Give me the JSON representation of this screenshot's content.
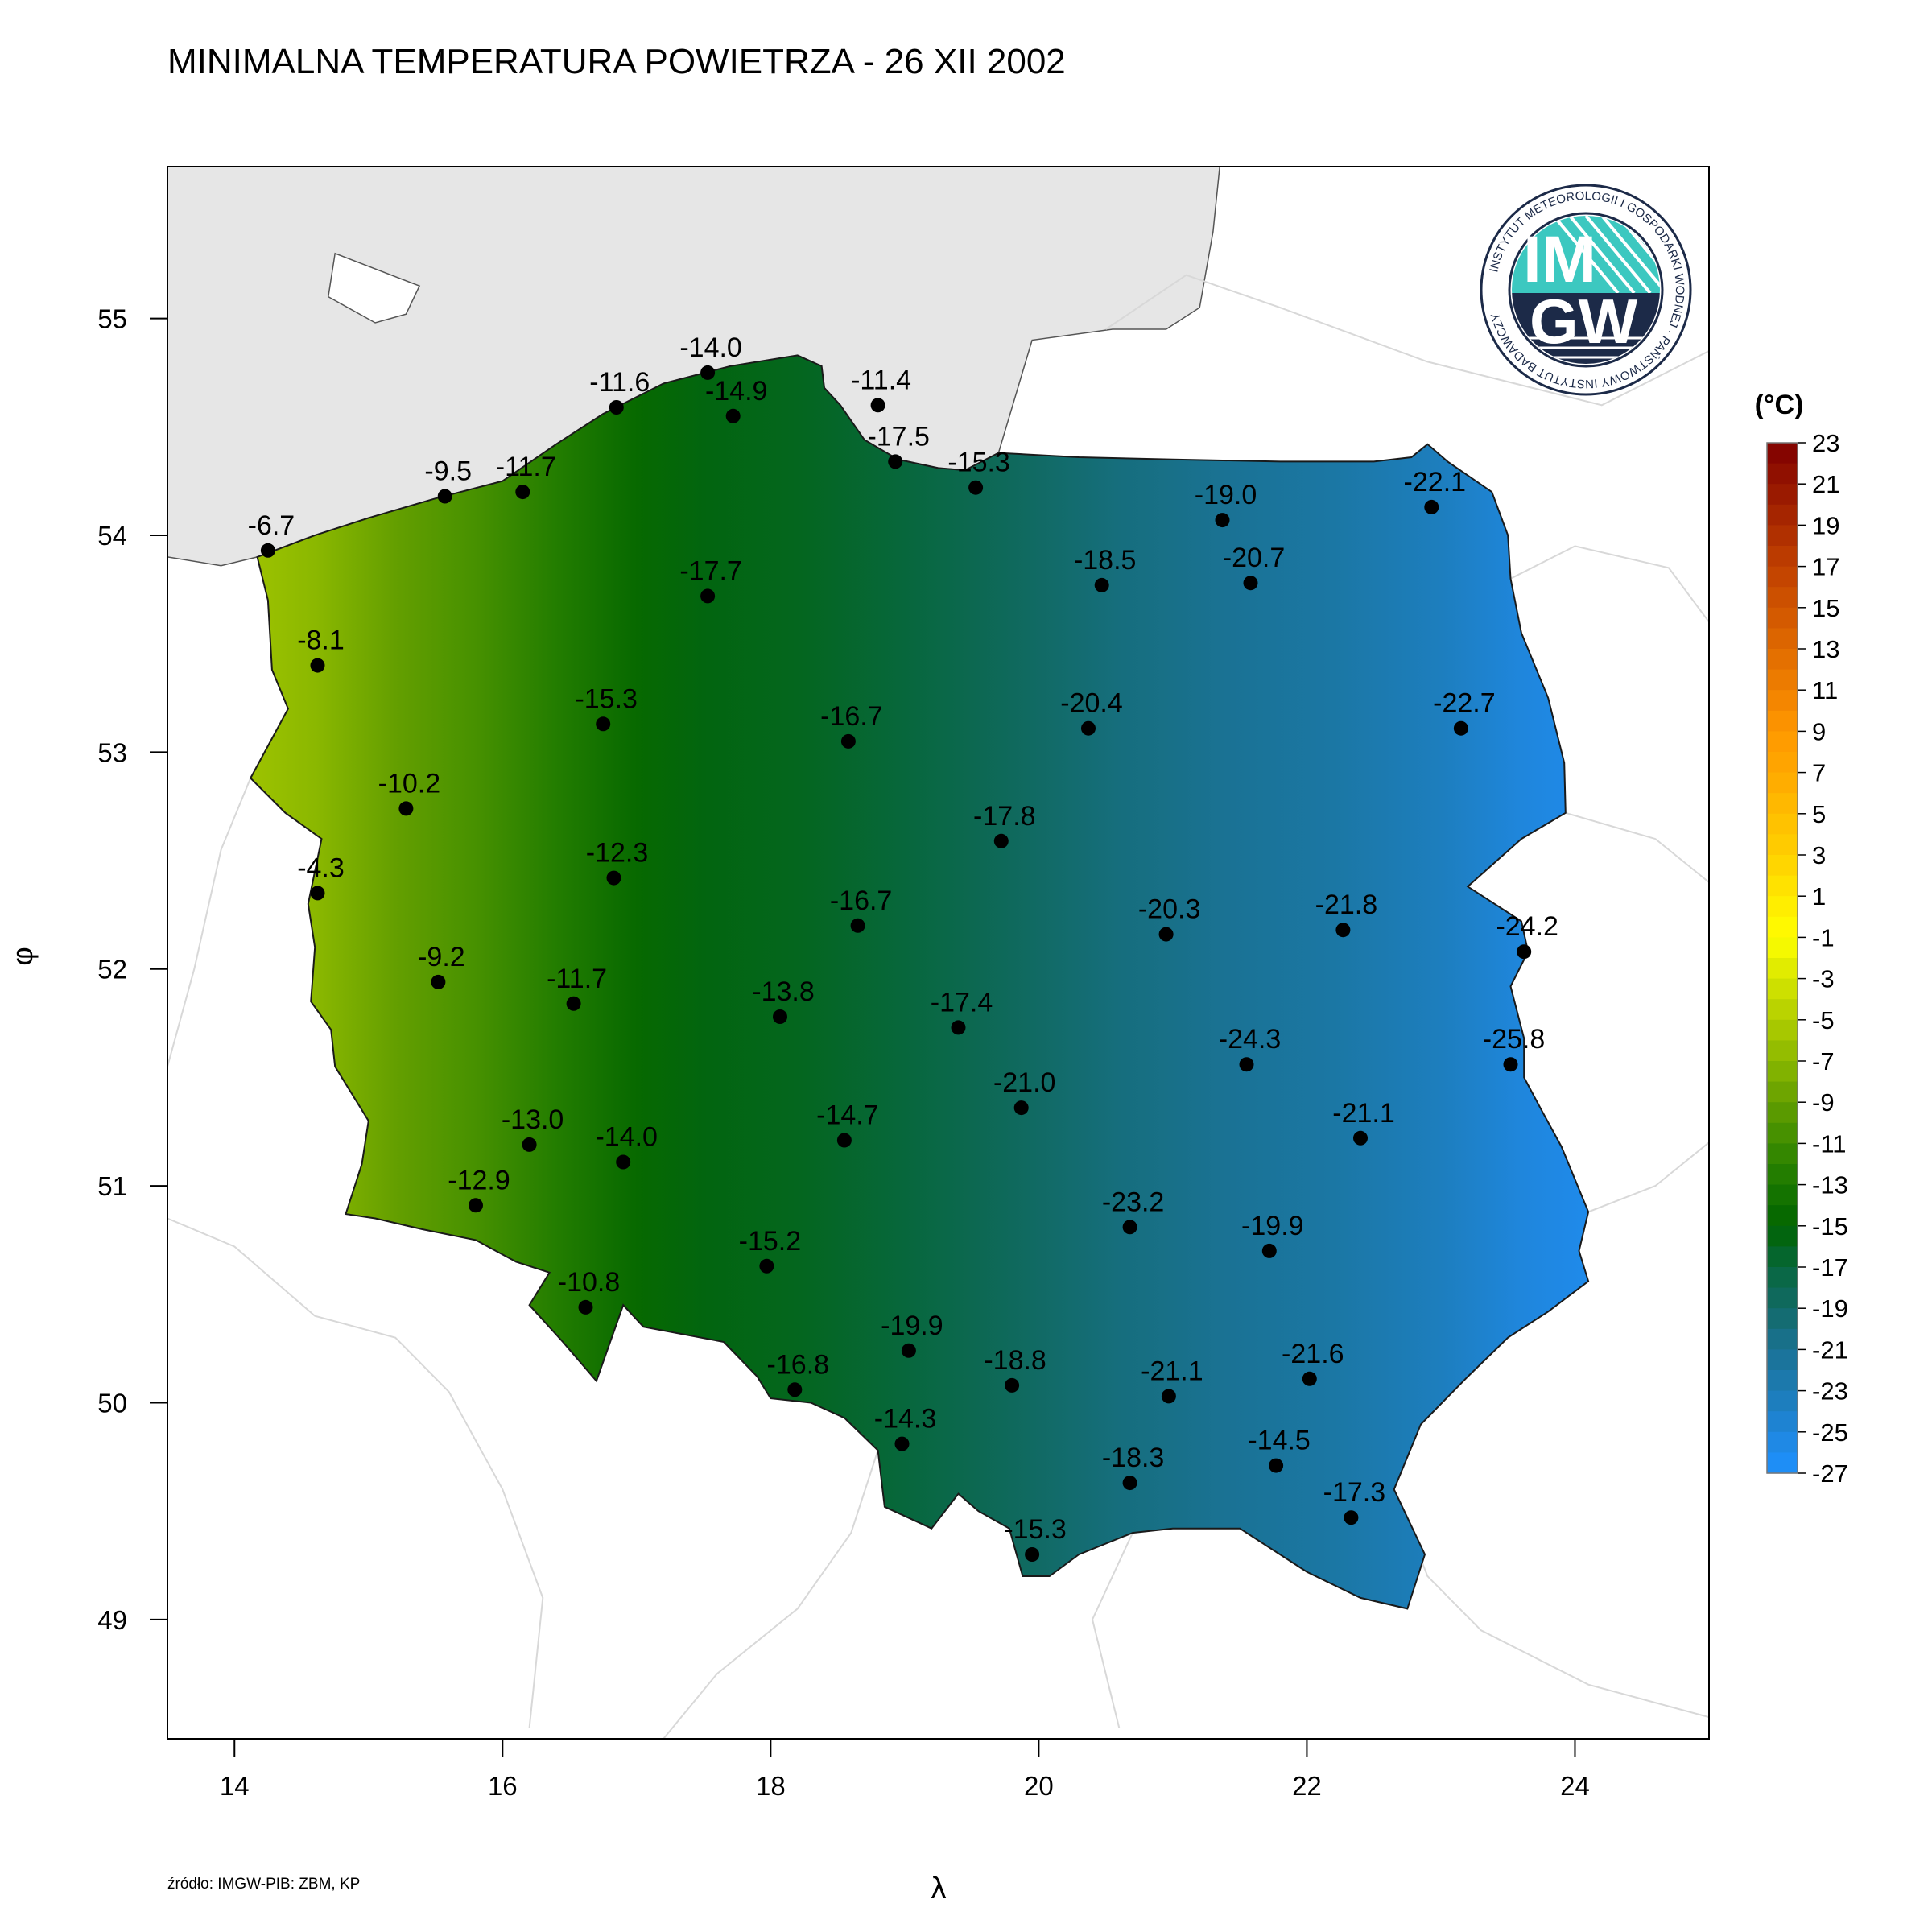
{
  "title": "MINIMALNA TEMPERATURA POWIETRZA - 26 XII 2002",
  "source": "źródło: IMGW-PIB: ZBM, KP",
  "axes": {
    "x_label": "λ",
    "y_label": "φ",
    "x_ticks": [
      14,
      16,
      18,
      20,
      22,
      24
    ],
    "y_ticks": [
      49,
      50,
      51,
      52,
      53,
      54,
      55
    ],
    "x_range": [
      13.5,
      25.0
    ],
    "y_range": [
      48.45,
      55.7
    ]
  },
  "logo": {
    "name": "IMGW",
    "line1": "IM",
    "line2": "GW",
    "ring_text": "INSTYTUT METEOROLOGII I GOSPODARKI WODNEJ · PAŃSTWOWY INSTYTUT BADAWCZY"
  },
  "legend": {
    "title": "(°C)",
    "labels": [
      "23",
      "21",
      "19",
      "17",
      "15",
      "13",
      "11",
      "9",
      "7",
      "5",
      "3",
      "1",
      "-1",
      "-3",
      "-5",
      "-7",
      "-9",
      "-11",
      "-13",
      "-15",
      "-17",
      "-19",
      "-21",
      "-23",
      "-25",
      "-27"
    ],
    "range": [
      -27,
      23
    ]
  },
  "colors": {
    "sea": "#e6e6e6",
    "frame": "#000000",
    "marker": "#000000",
    "warm_top": "#7f0000",
    "cold_bottom": "#1e90ff",
    "logo_teal": "#3cc8c0",
    "logo_navy": "#1c2a48"
  },
  "stations": [
    {
      "lon": 14.25,
      "lat": 53.93,
      "label": "-6.7"
    },
    {
      "lon": 15.57,
      "lat": 54.18,
      "label": "-9.5"
    },
    {
      "lon": 16.15,
      "lat": 54.2,
      "label": "-11.7"
    },
    {
      "lon": 16.85,
      "lat": 54.59,
      "label": "-11.6"
    },
    {
      "lon": 17.53,
      "lat": 54.75,
      "label": "-14.0"
    },
    {
      "lon": 17.72,
      "lat": 54.55,
      "label": "-14.9"
    },
    {
      "lon": 18.8,
      "lat": 54.6,
      "label": "-11.4"
    },
    {
      "lon": 18.93,
      "lat": 54.34,
      "label": "-17.5"
    },
    {
      "lon": 19.53,
      "lat": 54.22,
      "label": "-15.3"
    },
    {
      "lon": 21.37,
      "lat": 54.07,
      "label": "-19.0"
    },
    {
      "lon": 22.93,
      "lat": 54.13,
      "label": "-22.1"
    },
    {
      "lon": 20.47,
      "lat": 53.77,
      "label": "-18.5"
    },
    {
      "lon": 21.58,
      "lat": 53.78,
      "label": "-20.7"
    },
    {
      "lon": 14.62,
      "lat": 53.4,
      "label": "-8.1"
    },
    {
      "lon": 17.53,
      "lat": 53.72,
      "label": "-17.7"
    },
    {
      "lon": 16.75,
      "lat": 53.13,
      "label": "-15.3"
    },
    {
      "lon": 18.58,
      "lat": 53.05,
      "label": "-16.7"
    },
    {
      "lon": 20.37,
      "lat": 53.11,
      "label": "-20.4"
    },
    {
      "lon": 23.15,
      "lat": 53.11,
      "label": "-22.7"
    },
    {
      "lon": 15.28,
      "lat": 52.74,
      "label": "-10.2"
    },
    {
      "lon": 19.72,
      "lat": 52.59,
      "label": "-17.8"
    },
    {
      "lon": 14.62,
      "lat": 52.35,
      "label": "-4.3"
    },
    {
      "lon": 16.83,
      "lat": 52.42,
      "label": "-12.3"
    },
    {
      "lon": 18.65,
      "lat": 52.2,
      "label": "-16.7"
    },
    {
      "lon": 20.95,
      "lat": 52.16,
      "label": "-20.3"
    },
    {
      "lon": 22.27,
      "lat": 52.18,
      "label": "-21.8"
    },
    {
      "lon": 23.62,
      "lat": 52.08,
      "label": "-24.2"
    },
    {
      "lon": 15.52,
      "lat": 51.94,
      "label": "-9.2"
    },
    {
      "lon": 16.53,
      "lat": 51.84,
      "label": "-11.7"
    },
    {
      "lon": 18.07,
      "lat": 51.78,
      "label": "-13.8"
    },
    {
      "lon": 19.4,
      "lat": 51.73,
      "label": "-17.4"
    },
    {
      "lon": 21.55,
      "lat": 51.56,
      "label": "-24.3"
    },
    {
      "lon": 23.52,
      "lat": 51.56,
      "label": "-25.8"
    },
    {
      "lon": 19.87,
      "lat": 51.36,
      "label": "-21.0"
    },
    {
      "lon": 16.2,
      "lat": 51.19,
      "label": "-13.0"
    },
    {
      "lon": 16.9,
      "lat": 51.11,
      "label": "-14.0"
    },
    {
      "lon": 18.55,
      "lat": 51.21,
      "label": "-14.7"
    },
    {
      "lon": 22.4,
      "lat": 51.22,
      "label": "-21.1"
    },
    {
      "lon": 15.8,
      "lat": 50.91,
      "label": "-12.9"
    },
    {
      "lon": 20.68,
      "lat": 50.81,
      "label": "-23.2"
    },
    {
      "lon": 21.72,
      "lat": 50.7,
      "label": "-19.9"
    },
    {
      "lon": 17.97,
      "lat": 50.63,
      "label": "-15.2"
    },
    {
      "lon": 16.62,
      "lat": 50.44,
      "label": "-10.8"
    },
    {
      "lon": 19.03,
      "lat": 50.24,
      "label": "-19.9"
    },
    {
      "lon": 22.02,
      "lat": 50.11,
      "label": "-21.6"
    },
    {
      "lon": 18.18,
      "lat": 50.06,
      "label": "-16.8"
    },
    {
      "lon": 19.8,
      "lat": 50.08,
      "label": "-18.8"
    },
    {
      "lon": 20.97,
      "lat": 50.03,
      "label": "-21.1"
    },
    {
      "lon": 18.98,
      "lat": 49.81,
      "label": "-14.3"
    },
    {
      "lon": 21.77,
      "lat": 49.71,
      "label": "-14.5"
    },
    {
      "lon": 20.68,
      "lat": 49.63,
      "label": "-18.3"
    },
    {
      "lon": 22.33,
      "lat": 49.47,
      "label": "-17.3"
    },
    {
      "lon": 19.95,
      "lat": 49.3,
      "label": "-15.3"
    }
  ]
}
